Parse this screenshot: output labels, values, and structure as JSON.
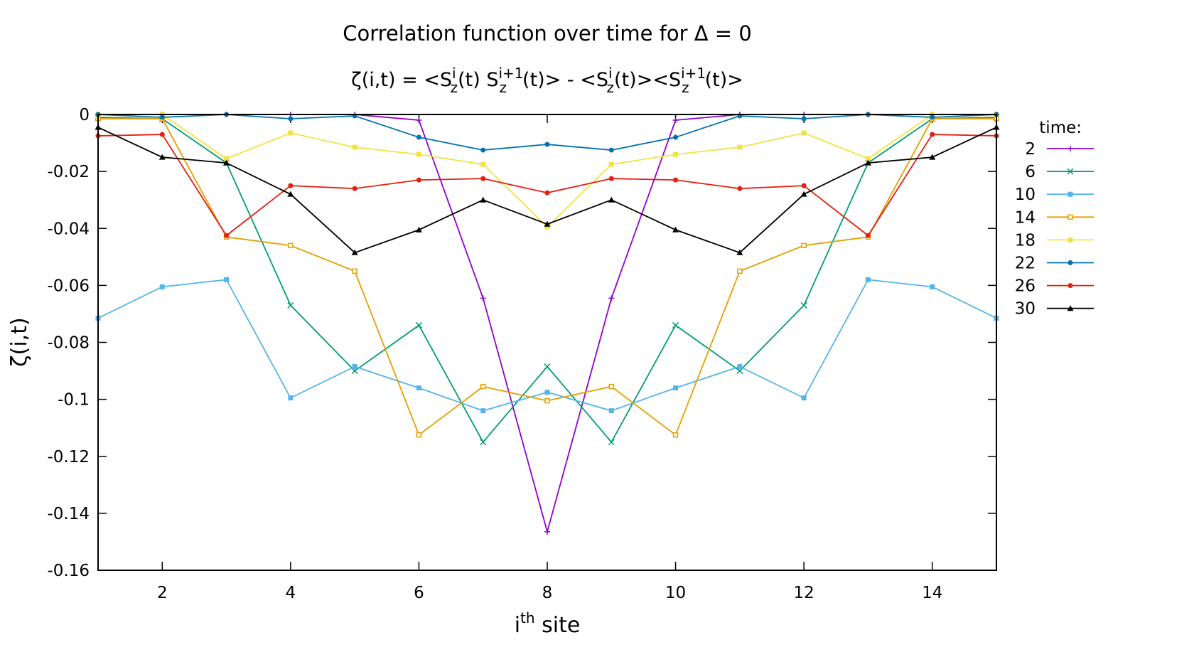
{
  "chart_data": {
    "type": "line",
    "title": "Correlation function over time for Δ = 0",
    "subtitle": {
      "lead": "ζ(i,t) = <S",
      "sup1": "i",
      "sub1": "z",
      "mid1": "(t) S",
      "sup2": "i+1",
      "sub2": "z",
      "mid2": "(t)> - <S",
      "sup3": "i",
      "sub3": "z",
      "mid3": "(t)><S",
      "sup4": "i+1",
      "sub4": "z",
      "tail": "(t)>"
    },
    "xlabel": {
      "base": "i",
      "sup": "th",
      "rest": " site"
    },
    "ylabel": "ζ(i,t)",
    "xlim": [
      1,
      15
    ],
    "ylim": [
      -0.16,
      0
    ],
    "x_ticks": [
      2,
      4,
      6,
      8,
      10,
      12,
      14
    ],
    "y_ticks": [
      0,
      -0.02,
      -0.04,
      -0.06,
      -0.08,
      -0.1,
      -0.12,
      -0.14,
      -0.16
    ],
    "y_tick_labels": [
      "0",
      "-0.02",
      "-0.04",
      "-0.06",
      "-0.08",
      "-0.1",
      "-0.12",
      "-0.14",
      "-0.16"
    ],
    "grid": false,
    "legend": {
      "title": "time:",
      "position": "right"
    },
    "x": [
      1,
      2,
      3,
      4,
      5,
      6,
      7,
      8,
      9,
      10,
      11,
      12,
      13,
      14,
      15
    ],
    "series": [
      {
        "name": "2",
        "color": "#9400d3",
        "marker": "plus",
        "values": [
          0,
          0,
          0,
          0,
          0,
          -0.002,
          -0.0645,
          -0.1465,
          -0.0645,
          -0.002,
          0,
          0,
          0,
          0,
          0
        ]
      },
      {
        "name": "6",
        "color": "#009e73",
        "marker": "cross",
        "values": [
          -0.001,
          -0.0015,
          -0.017,
          -0.067,
          -0.09,
          -0.074,
          -0.115,
          -0.0885,
          -0.115,
          -0.074,
          -0.09,
          -0.067,
          -0.017,
          -0.0015,
          -0.001
        ]
      },
      {
        "name": "10",
        "color": "#56b4e9",
        "marker": "square",
        "values": [
          -0.0715,
          -0.0605,
          -0.058,
          -0.0995,
          -0.0885,
          -0.096,
          -0.104,
          -0.0975,
          -0.104,
          -0.096,
          -0.0885,
          -0.0995,
          -0.058,
          -0.0605,
          -0.0715
        ]
      },
      {
        "name": "14",
        "color": "#e69f00",
        "marker": "square-open",
        "values": [
          -0.0015,
          -0.0015,
          -0.043,
          -0.046,
          -0.055,
          -0.1125,
          -0.0955,
          -0.1005,
          -0.0955,
          -0.1125,
          -0.055,
          -0.046,
          -0.043,
          -0.0015,
          -0.0015
        ]
      },
      {
        "name": "18",
        "color": "#f0e442",
        "marker": "square",
        "values": [
          0,
          0,
          -0.0155,
          -0.0065,
          -0.0115,
          -0.014,
          -0.0175,
          -0.0395,
          -0.0175,
          -0.014,
          -0.0115,
          -0.0065,
          -0.0155,
          0,
          0
        ]
      },
      {
        "name": "22",
        "color": "#0072b2",
        "marker": "circle",
        "values": [
          0,
          -0.001,
          0,
          -0.0015,
          -0.0005,
          -0.008,
          -0.0125,
          -0.0105,
          -0.0125,
          -0.008,
          -0.0005,
          -0.0015,
          0,
          -0.001,
          0
        ]
      },
      {
        "name": "26",
        "color": "#e51e10",
        "marker": "circle",
        "values": [
          -0.0075,
          -0.007,
          -0.0425,
          -0.025,
          -0.026,
          -0.023,
          -0.0225,
          -0.0275,
          -0.0225,
          -0.023,
          -0.026,
          -0.025,
          -0.0425,
          -0.007,
          -0.0075
        ]
      },
      {
        "name": "30",
        "color": "#000000",
        "marker": "triangle",
        "values": [
          -0.0045,
          -0.015,
          -0.017,
          -0.028,
          -0.0485,
          -0.0405,
          -0.03,
          -0.0385,
          -0.03,
          -0.0405,
          -0.0485,
          -0.028,
          -0.017,
          -0.015,
          -0.0045
        ]
      }
    ]
  }
}
